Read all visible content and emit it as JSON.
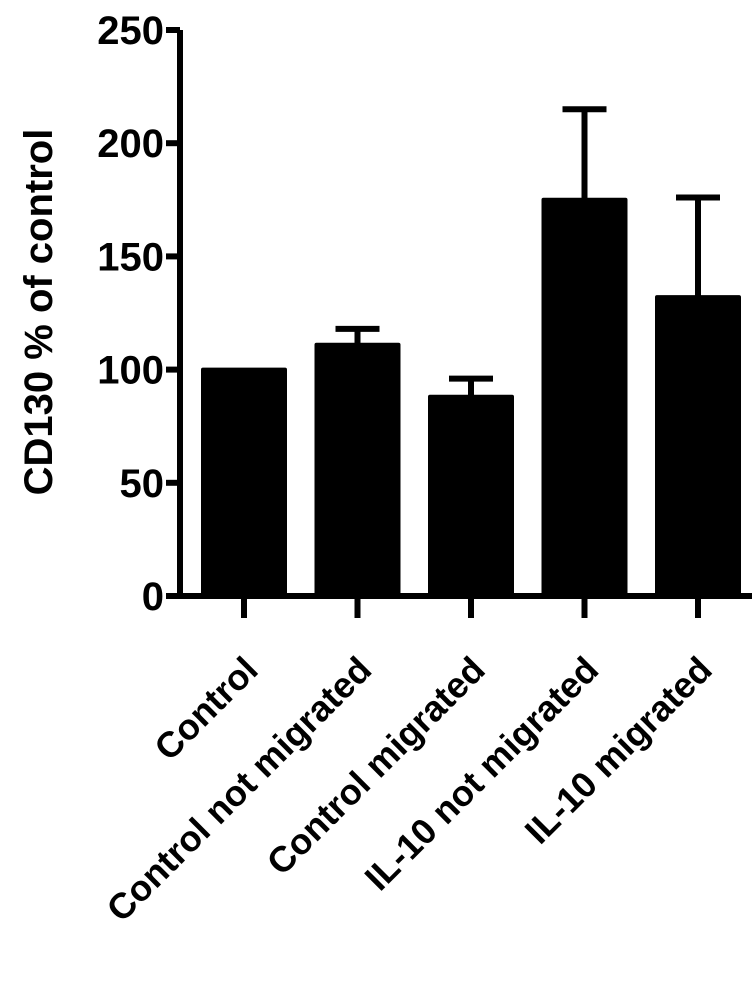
{
  "chart_data": {
    "type": "bar",
    "title": "",
    "xlabel": "",
    "ylabel": "CD130 % of control",
    "ylim": [
      0,
      250
    ],
    "yticks": [
      0,
      50,
      100,
      150,
      200,
      250
    ],
    "categories": [
      "Control",
      "Control not migrated",
      "Control migrated",
      "IL-10 not migrated",
      "IL-10 migrated"
    ],
    "values": [
      100,
      111,
      88,
      175,
      132
    ],
    "error_upper": [
      0,
      7,
      8,
      40,
      44
    ],
    "bar_color": "#000000",
    "grid": false,
    "legend": "none"
  }
}
